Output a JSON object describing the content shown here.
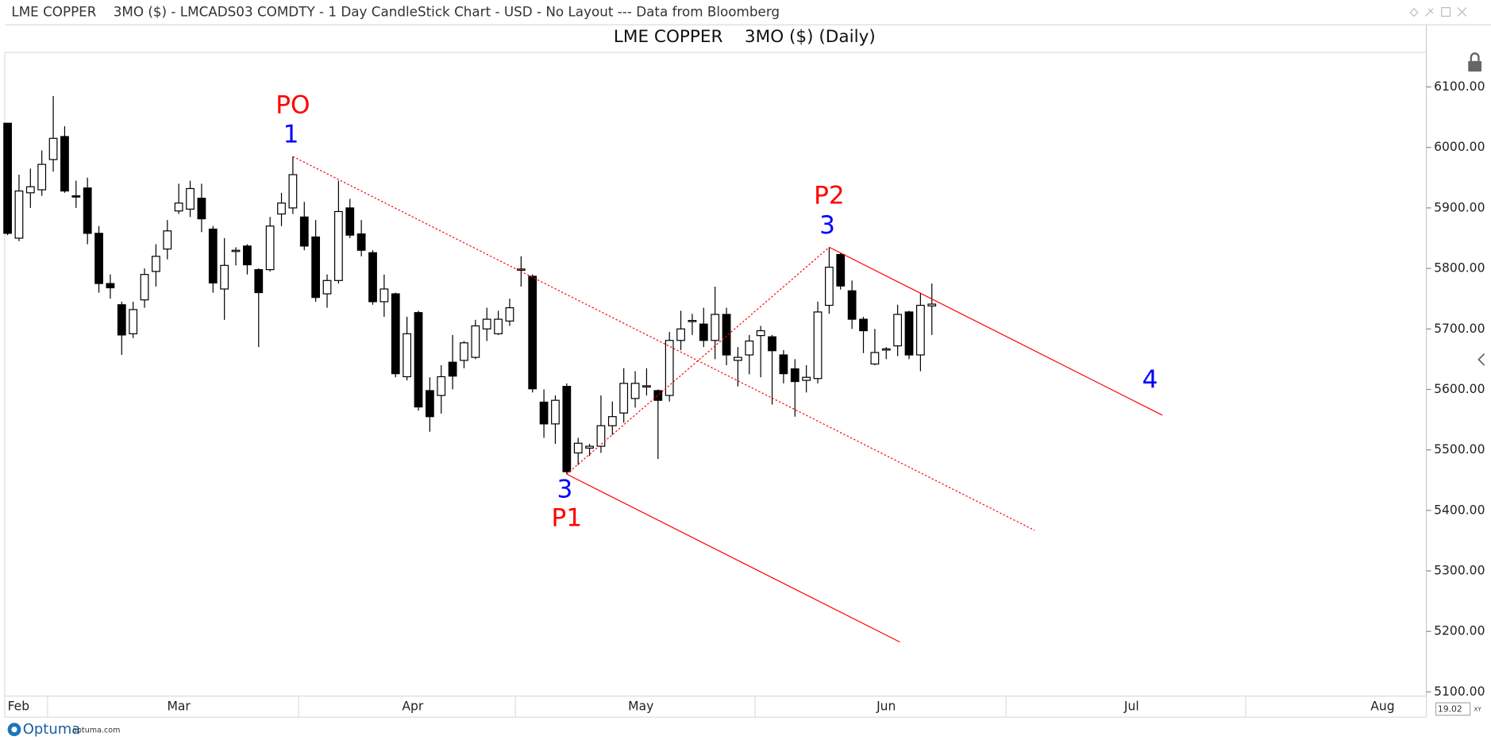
{
  "header": {
    "text": "LME COPPER    3MO ($) - LMCADS03 COMDTY - 1 Day CandleStick Chart - USD - No Layout --- Data from Bloomberg"
  },
  "footer": {
    "brand": "Optuma",
    "url": "optuma.com",
    "zoom": "19.02",
    "zoom_mode": "XY"
  },
  "chart_data": {
    "type": "candlestick",
    "title": "LME COPPER    3MO ($) (Daily)",
    "categories": [
      "Feb",
      null,
      null,
      null,
      "Mar",
      null,
      null,
      null,
      null,
      null,
      null,
      null,
      null,
      null,
      null,
      null,
      null,
      null,
      null,
      null,
      null,
      null,
      null,
      null,
      null,
      null,
      "Apr",
      null,
      null,
      null,
      null,
      null,
      null,
      null,
      null,
      null,
      null,
      null,
      null,
      null,
      null,
      null,
      null,
      null,
      null,
      "May",
      null,
      null,
      null,
      null,
      null,
      null,
      null,
      null,
      null,
      null,
      null,
      null,
      null,
      null,
      null,
      null,
      null,
      null,
      null,
      null,
      "Jun",
      null,
      null,
      null,
      null,
      null,
      null,
      null,
      null,
      null,
      null,
      null,
      null,
      null,
      null,
      null,
      null,
      null,
      null,
      null,
      null,
      null,
      "Jul",
      null,
      null,
      null,
      null,
      null,
      null,
      null,
      null,
      null,
      null,
      null,
      null,
      null,
      null,
      null,
      null,
      null,
      null,
      null,
      null,
      "Aug",
      null,
      null,
      null,
      null,
      null,
      null,
      null,
      null,
      null,
      null,
      null,
      null,
      null,
      null
    ],
    "open": [
      6040,
      5850,
      5925,
      5930,
      5980,
      6018,
      5920,
      5933,
      5858,
      5775,
      5740,
      5692,
      5748,
      5795,
      5832,
      5895,
      5898,
      5916,
      5865,
      5766,
      5828,
      5837,
      5798,
      5798,
      5890,
      5900,
      5885,
      5852,
      5758,
      5780,
      5900,
      5857,
      5826,
      5745,
      5758,
      5621,
      5727,
      5598,
      5590,
      5645,
      5648,
      5653,
      5700,
      5692,
      5713,
      5797,
      5787,
      5579,
      5543,
      5605,
      5495,
      5503,
      5506,
      5540,
      5561,
      5585,
      5604,
      5598,
      5590,
      5681,
      5712,
      5708,
      5681,
      5724,
      5648,
      5657,
      5689,
      5687,
      5657,
      5634,
      5615,
      5618,
      5739,
      5823,
      5763,
      5716,
      5642,
      5665,
      5672,
      5728,
      5657,
      5738,
      null,
      null,
      null,
      null,
      null,
      null,
      null,
      null,
      null,
      null,
      null,
      null,
      null,
      null,
      null,
      null,
      null,
      null,
      null,
      null,
      null,
      null,
      null,
      null,
      null,
      null,
      null,
      null,
      null,
      null,
      null,
      null,
      null,
      null,
      null,
      null,
      null,
      null,
      null,
      null,
      null,
      null
    ],
    "high": [
      6040,
      5955,
      5965,
      5995,
      6085,
      6035,
      5945,
      5950,
      5870,
      5790,
      5745,
      5745,
      5800,
      5840,
      5880,
      5940,
      5945,
      5940,
      5870,
      5850,
      5835,
      5840,
      5800,
      5885,
      5925,
      5985,
      5910,
      5880,
      5790,
      5945,
      5915,
      5880,
      5830,
      5790,
      5760,
      5720,
      5730,
      5620,
      5640,
      5690,
      5680,
      5715,
      5735,
      5730,
      5750,
      5820,
      5790,
      5600,
      5590,
      5610,
      5520,
      5510,
      5590,
      5580,
      5635,
      5630,
      5635,
      5600,
      5695,
      5730,
      5725,
      5735,
      5770,
      5735,
      5670,
      5690,
      5705,
      5690,
      5665,
      5650,
      5640,
      5745,
      5835,
      5825,
      5780,
      5720,
      5700,
      5670,
      5740,
      5730,
      5760,
      5775,
      null,
      null,
      null,
      null,
      null,
      null,
      null,
      null,
      null,
      null,
      null,
      null,
      null,
      null,
      null,
      null,
      null,
      null,
      null,
      null,
      null,
      null,
      null,
      null,
      null,
      null,
      null,
      null,
      null,
      null,
      null,
      null,
      null,
      null,
      null,
      null,
      null,
      null,
      null,
      null,
      null,
      null
    ],
    "low": [
      5855,
      5845,
      5900,
      5920,
      5960,
      5925,
      5900,
      5840,
      5760,
      5750,
      5657,
      5685,
      5735,
      5770,
      5815,
      5890,
      5885,
      5860,
      5760,
      5715,
      5805,
      5790,
      5670,
      5795,
      5870,
      5890,
      5830,
      5745,
      5735,
      5775,
      5850,
      5820,
      5740,
      5720,
      5620,
      5615,
      5565,
      5530,
      5560,
      5600,
      5635,
      5650,
      5680,
      5690,
      5705,
      5770,
      5595,
      5520,
      5510,
      5460,
      5475,
      5490,
      5495,
      5525,
      5545,
      5570,
      5590,
      5485,
      5580,
      5665,
      5690,
      5670,
      5650,
      5640,
      5605,
      5625,
      5620,
      5575,
      5610,
      5555,
      5595,
      5610,
      5725,
      5765,
      5700,
      5660,
      5640,
      5650,
      5655,
      5650,
      5630,
      5690,
      null,
      null,
      null,
      null,
      null,
      null,
      null,
      null,
      null,
      null,
      null,
      null,
      null,
      null,
      null,
      null,
      null,
      null,
      null,
      null,
      null,
      null,
      null,
      null,
      null,
      null,
      null,
      null,
      null,
      null,
      null,
      null,
      null,
      null,
      null,
      null,
      null,
      null,
      null,
      null,
      null,
      null
    ],
    "close": [
      5858,
      5928,
      5935,
      5972,
      6015,
      5928,
      5918,
      5858,
      5775,
      5768,
      5690,
      5732,
      5790,
      5820,
      5862,
      5908,
      5932,
      5882,
      5776,
      5805,
      5830,
      5806,
      5760,
      5870,
      5908,
      5955,
      5837,
      5752,
      5780,
      5894,
      5855,
      5830,
      5745,
      5766,
      5626,
      5692,
      5571,
      5555,
      5621,
      5622,
      5677,
      5705,
      5716,
      5716,
      5735,
      5799,
      5601,
      5543,
      5582,
      5464,
      5511,
      5506,
      5540,
      5555,
      5610,
      5610,
      5606,
      5582,
      5681,
      5700,
      5714,
      5681,
      5724,
      5657,
      5653,
      5680,
      5697,
      5664,
      5626,
      5613,
      5620,
      5728,
      5802,
      5771,
      5716,
      5697,
      5661,
      5667,
      5724,
      5657,
      5739,
      5741,
      null,
      null,
      null,
      null,
      null,
      null,
      null,
      null,
      null,
      null,
      null,
      null,
      null,
      null,
      null,
      null,
      null,
      null,
      null,
      null,
      null,
      null,
      null,
      null,
      null,
      null,
      null,
      null,
      null,
      null,
      null,
      null,
      null,
      null,
      null,
      null,
      null,
      null,
      null,
      null,
      null,
      null
    ],
    "up_color": "#ffffff",
    "down_color": "#000000",
    "outline_color": "#000000",
    "ylim": [
      5093,
      6157
    ],
    "yticks": [
      {
        "value": 5100,
        "label": "5100.00"
      },
      {
        "value": 5200,
        "label": "5200.00"
      },
      {
        "value": 5300,
        "label": "5300.00"
      },
      {
        "value": 5400,
        "label": "5400.00"
      },
      {
        "value": 5500,
        "label": "5500.00"
      },
      {
        "value": 5600,
        "label": "5600.00"
      },
      {
        "value": 5700,
        "label": "5700.00"
      },
      {
        "value": 5800,
        "label": "5800.00"
      },
      {
        "value": 5900,
        "label": "5900.00"
      },
      {
        "value": 6000,
        "label": "6000.00"
      },
      {
        "value": 6100,
        "label": "6100.00"
      }
    ],
    "grid": false,
    "pitchfork": {
      "color": "#ff0000",
      "count_color": "#0000ff",
      "target_label": "4",
      "pivots": [
        {
          "label": "PO",
          "count": "1",
          "index": 25,
          "price": 5985
        },
        {
          "label": "P1",
          "count": "3",
          "index": 49,
          "price": 5460
        },
        {
          "label": "P2",
          "count": "3",
          "index": 72,
          "price": 5835
        }
      ]
    }
  }
}
